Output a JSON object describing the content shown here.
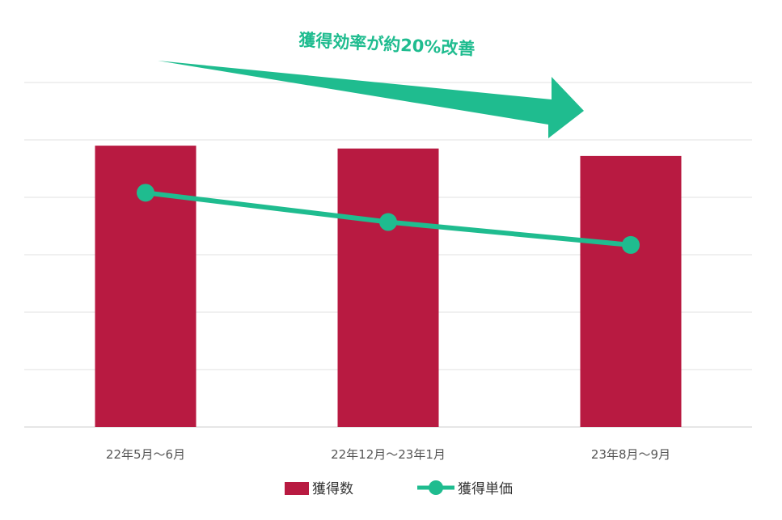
{
  "chart_data": {
    "type": "bar",
    "title": "",
    "xlabel": "",
    "ylabel": "",
    "ylim": [
      0,
      6
    ],
    "grid": true,
    "categories": [
      "22年5月〜6月",
      "22年12月〜23年1月",
      "23年8月〜9月"
    ],
    "series": [
      {
        "name": "獲得数",
        "type": "bar",
        "color": "#b81a41",
        "values": [
          4.9,
          4.85,
          4.72
        ]
      },
      {
        "name": "獲得単価",
        "type": "line",
        "color": "#1fbc8f",
        "values": [
          4.08,
          3.57,
          3.17
        ]
      }
    ],
    "annotation": {
      "text": "獲得効率が約20%改善",
      "arrow": "right",
      "color": "#1fbc8f"
    },
    "legend": {
      "placement": "bottom-center"
    }
  }
}
